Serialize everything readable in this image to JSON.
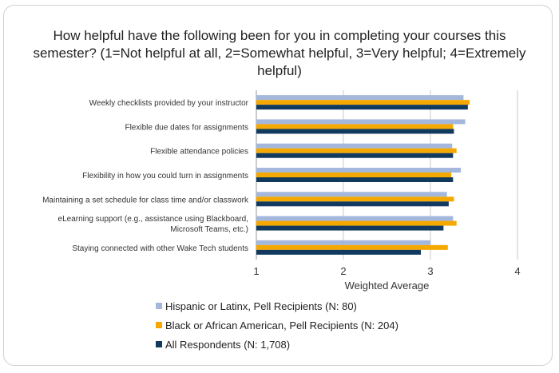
{
  "chart_data": {
    "type": "bar",
    "orientation": "horizontal",
    "title": "How helpful have the following been for you in completing your courses this semester? (1=Not helpful at all, 2=Somewhat helpful, 3=Very helpful; 4=Extremely helpful)",
    "xlabel": "Weighted Average",
    "xlim": [
      1,
      4
    ],
    "xticks": [
      "1",
      "2",
      "3",
      "4"
    ],
    "grid": "vertical",
    "legend_position": "bottom",
    "categories": [
      [
        "Weekly checklists provided by your instructor"
      ],
      [
        "Flexible due dates for assignments"
      ],
      [
        "Flexible attendance policies"
      ],
      [
        "Flexibility in how you could turn in assignments"
      ],
      [
        "Maintaining a set schedule for class time and/or classwork"
      ],
      [
        "eLearning support (e.g., assistance using Blackboard,",
        "Microsoft Teams, etc.)"
      ],
      [
        "Staying connected with other Wake Tech students"
      ]
    ],
    "series": [
      {
        "name": "Hispanic or Latinx, Pell Recipients (N: 80)",
        "color": "#a4b7dd",
        "values": [
          3.38,
          3.4,
          3.25,
          3.35,
          3.19,
          3.26,
          3.0
        ]
      },
      {
        "name": "Black or African American, Pell Recipients (N: 204)",
        "color": "#f5a800",
        "values": [
          3.45,
          3.26,
          3.3,
          3.24,
          3.27,
          3.3,
          3.2
        ]
      },
      {
        "name": "All Respondents (N: 1,708)",
        "color": "#123a5e",
        "values": [
          3.43,
          3.27,
          3.26,
          3.26,
          3.21,
          3.15,
          2.89
        ]
      }
    ]
  }
}
